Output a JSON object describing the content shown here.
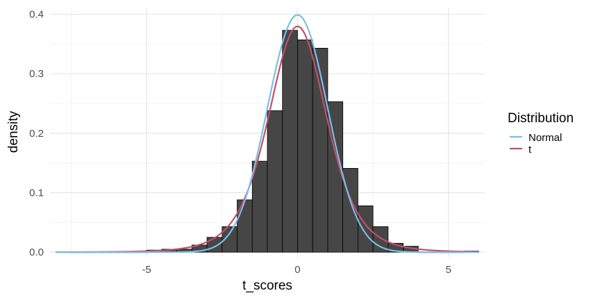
{
  "chart_data": {
    "type": "histogram",
    "xlabel": "t_scores",
    "ylabel": "density",
    "xlim": [
      -8.2,
      6.2
    ],
    "ylim": [
      -0.008,
      0.41
    ],
    "x_ticks": [
      -5,
      0,
      5
    ],
    "x_minor_ticks": [
      -7.5,
      -2.5,
      2.5
    ],
    "y_ticks": [
      0.0,
      0.1,
      0.2,
      0.3,
      0.4
    ],
    "x_tick_labels": [
      "-5",
      "0",
      "5"
    ],
    "y_tick_labels": [
      "0.0",
      "0.1",
      "0.2",
      "0.3",
      "0.4"
    ],
    "grid": true,
    "bin_width": 0.5,
    "bins": [
      {
        "x": -7.75,
        "density": 0.0005
      },
      {
        "x": -7.25,
        "density": 0.0
      },
      {
        "x": -6.75,
        "density": 0.0
      },
      {
        "x": -6.25,
        "density": 0.0
      },
      {
        "x": -5.75,
        "density": 0.0
      },
      {
        "x": -5.25,
        "density": 0.0
      },
      {
        "x": -4.75,
        "density": 0.0035
      },
      {
        "x": -4.25,
        "density": 0.005
      },
      {
        "x": -3.75,
        "density": 0.005
      },
      {
        "x": -3.25,
        "density": 0.012
      },
      {
        "x": -2.75,
        "density": 0.025
      },
      {
        "x": -2.25,
        "density": 0.043
      },
      {
        "x": -1.75,
        "density": 0.088
      },
      {
        "x": -1.25,
        "density": 0.153
      },
      {
        "x": -0.75,
        "density": 0.238
      },
      {
        "x": -0.25,
        "density": 0.373
      },
      {
        "x": 0.25,
        "density": 0.357
      },
      {
        "x": 0.75,
        "density": 0.343
      },
      {
        "x": 1.25,
        "density": 0.253
      },
      {
        "x": 1.75,
        "density": 0.141
      },
      {
        "x": 2.25,
        "density": 0.078
      },
      {
        "x": 2.75,
        "density": 0.043
      },
      {
        "x": 3.25,
        "density": 0.015
      },
      {
        "x": 3.75,
        "density": 0.01
      },
      {
        "x": 4.25,
        "density": 0.0
      },
      {
        "x": 4.75,
        "density": 0.0
      },
      {
        "x": 5.25,
        "density": 0.0
      },
      {
        "x": 5.75,
        "density": 0.002
      }
    ],
    "bar_color": "#464646",
    "legend": {
      "title": "Distribution",
      "position": "right",
      "entries": [
        {
          "name": "Normal",
          "color": "#7bbde6"
        },
        {
          "name": "t",
          "color": "#c0506a"
        }
      ]
    },
    "curves": [
      {
        "name": "Normal",
        "distribution": "normal",
        "mean": 0,
        "sd": 1,
        "color": "#7bbde6"
      },
      {
        "name": "t",
        "distribution": "student-t",
        "df": 5,
        "color": "#c0506a"
      }
    ]
  }
}
